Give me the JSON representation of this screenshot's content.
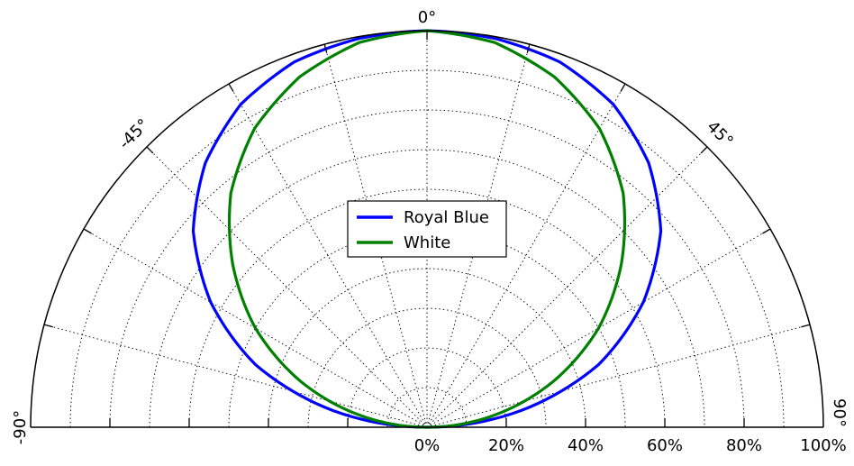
{
  "chart_data": {
    "type": "polar-line",
    "angle_ticks": [
      "-90°",
      "-45°",
      "0°",
      "45°",
      "90°"
    ],
    "radial_ticks": [
      "0%",
      "20%",
      "40%",
      "60%",
      "80%",
      "100%"
    ],
    "angle_range": [
      -90,
      90
    ],
    "radial_range": [
      0,
      100
    ],
    "grid": true,
    "legend_placement": "center",
    "series": [
      {
        "name": "Royal Blue",
        "color": "#0000ff",
        "angles": [
          -90,
          -80,
          -70,
          -60,
          -50,
          -40,
          -30,
          -20,
          -10,
          0,
          10,
          20,
          30,
          40,
          50,
          60,
          70,
          80,
          90
        ],
        "values": [
          0,
          24,
          46,
          63,
          77,
          87,
          94,
          98,
          99.5,
          100,
          99.5,
          98,
          94,
          87,
          77,
          63,
          46,
          24,
          0
        ]
      },
      {
        "name": "White",
        "color": "#008000",
        "angles": [
          -90,
          -80,
          -70,
          -60,
          -50,
          -40,
          -30,
          -20,
          -10,
          0,
          10,
          20,
          30,
          40,
          50,
          60,
          70,
          80,
          90
        ],
        "values": [
          0,
          17,
          34,
          50,
          64,
          77,
          87,
          94,
          98.5,
          100,
          98.5,
          94,
          87,
          77,
          64,
          50,
          34,
          17,
          0
        ]
      }
    ]
  }
}
